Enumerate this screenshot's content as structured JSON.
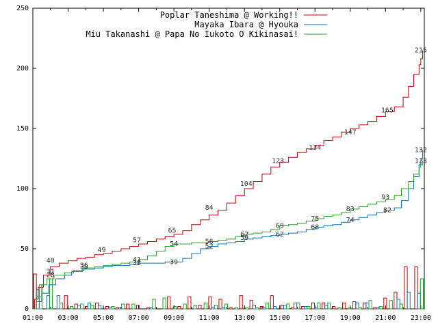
{
  "chart_data": {
    "type": "line",
    "title": "",
    "xlabel": "",
    "ylabel": "",
    "xlim": [
      1,
      23.2
    ],
    "ylim": [
      0,
      250
    ],
    "y_ticks": [
      "0",
      "50",
      "100",
      "150",
      "200",
      "250"
    ],
    "x_ticks": [
      "01:00",
      "03:00",
      "05:00",
      "07:00",
      "09:00",
      "11:00",
      "13:00",
      "15:00",
      "17:00",
      "19:00",
      "21:00",
      "23:00"
    ],
    "legend_position": "top-right",
    "series": [
      {
        "name": "Poplar Taneshima @ Working!!",
        "color": "#c00000",
        "points": [
          [
            1.0,
            0
          ],
          [
            1.1,
            8
          ],
          [
            1.3,
            18
          ],
          [
            1.6,
            28
          ],
          [
            2.0,
            35
          ],
          [
            2.5,
            38
          ],
          [
            3.0,
            40
          ],
          [
            3.5,
            42
          ],
          [
            4.0,
            43
          ],
          [
            4.5,
            45
          ],
          [
            5.0,
            46
          ],
          [
            5.5,
            48
          ],
          [
            6.0,
            50
          ],
          [
            6.5,
            52
          ],
          [
            7.0,
            54
          ],
          [
            7.5,
            56
          ],
          [
            8.0,
            58
          ],
          [
            8.5,
            60
          ],
          [
            9.0,
            62
          ],
          [
            9.5,
            65
          ],
          [
            10.0,
            70
          ],
          [
            10.5,
            74
          ],
          [
            11.0,
            78
          ],
          [
            11.5,
            82
          ],
          [
            12.0,
            88
          ],
          [
            12.5,
            94
          ],
          [
            13.0,
            100
          ],
          [
            13.5,
            106
          ],
          [
            14.0,
            112
          ],
          [
            14.5,
            118
          ],
          [
            15.0,
            122
          ],
          [
            15.5,
            126
          ],
          [
            16.0,
            130
          ],
          [
            16.5,
            133
          ],
          [
            17.0,
            136
          ],
          [
            17.5,
            140
          ],
          [
            18.0,
            143
          ],
          [
            18.5,
            147
          ],
          [
            19.0,
            150
          ],
          [
            19.5,
            153
          ],
          [
            20.0,
            156
          ],
          [
            20.5,
            160
          ],
          [
            21.0,
            164
          ],
          [
            21.5,
            168
          ],
          [
            22.0,
            176
          ],
          [
            22.3,
            185
          ],
          [
            22.6,
            195
          ],
          [
            22.9,
            203
          ],
          [
            23.0,
            208
          ],
          [
            23.1,
            215
          ]
        ],
        "data_labels": [
          {
            "x": 2.0,
            "y": 40,
            "text": "40"
          },
          {
            "x": 4.9,
            "y": 49,
            "text": "49"
          },
          {
            "x": 6.9,
            "y": 57,
            "text": "57"
          },
          {
            "x": 8.9,
            "y": 65,
            "text": "65"
          },
          {
            "x": 11.0,
            "y": 84,
            "text": "84"
          },
          {
            "x": 13.1,
            "y": 104,
            "text": "104"
          },
          {
            "x": 14.9,
            "y": 123,
            "text": "123"
          },
          {
            "x": 17.0,
            "y": 134,
            "text": "134"
          },
          {
            "x": 19.0,
            "y": 147,
            "text": "147"
          },
          {
            "x": 21.1,
            "y": 165,
            "text": "165"
          },
          {
            "x": 23.0,
            "y": 215,
            "text": "215"
          }
        ],
        "hist": [
          29,
          0,
          0,
          11,
          4,
          2,
          5,
          2,
          1,
          4,
          3,
          1,
          0,
          10,
          2,
          10,
          3,
          10,
          8,
          1,
          11,
          7,
          2,
          11,
          3,
          1,
          2,
          5,
          5,
          2,
          5,
          6,
          5,
          1,
          9,
          14,
          35,
          35
        ]
      },
      {
        "name": "Mayaka Ibara @ Hyouka",
        "color": "#0070c0",
        "points": [
          [
            1.0,
            0
          ],
          [
            1.2,
            6
          ],
          [
            1.5,
            13
          ],
          [
            1.9,
            20
          ],
          [
            2.3,
            25
          ],
          [
            2.8,
            28
          ],
          [
            3.2,
            31
          ],
          [
            3.8,
            33
          ],
          [
            4.5,
            34
          ],
          [
            5.0,
            35
          ],
          [
            5.5,
            36
          ],
          [
            6.0,
            36
          ],
          [
            6.5,
            37
          ],
          [
            7.0,
            38
          ],
          [
            7.5,
            38
          ],
          [
            8.0,
            38
          ],
          [
            8.5,
            39
          ],
          [
            9.0,
            39
          ],
          [
            9.5,
            42
          ],
          [
            10.0,
            46
          ],
          [
            10.5,
            50
          ],
          [
            11.0,
            52
          ],
          [
            11.5,
            54
          ],
          [
            12.0,
            55
          ],
          [
            12.5,
            56
          ],
          [
            13.0,
            58
          ],
          [
            13.5,
            59
          ],
          [
            14.0,
            60
          ],
          [
            14.5,
            61
          ],
          [
            15.0,
            62
          ],
          [
            15.5,
            63
          ],
          [
            16.0,
            64
          ],
          [
            16.5,
            66
          ],
          [
            17.0,
            68
          ],
          [
            17.5,
            69
          ],
          [
            18.0,
            70
          ],
          [
            18.5,
            72
          ],
          [
            19.0,
            74
          ],
          [
            19.5,
            76
          ],
          [
            20.0,
            78
          ],
          [
            20.5,
            80
          ],
          [
            21.0,
            82
          ],
          [
            21.5,
            84
          ],
          [
            21.9,
            90
          ],
          [
            22.3,
            100
          ],
          [
            22.6,
            110
          ],
          [
            22.9,
            120
          ],
          [
            23.0,
            125
          ],
          [
            23.1,
            132
          ]
        ],
        "data_labels": [
          {
            "x": 2.0,
            "y": 28,
            "text": "28"
          },
          {
            "x": 3.9,
            "y": 35,
            "text": "35"
          },
          {
            "x": 6.9,
            "y": 38,
            "text": "38"
          },
          {
            "x": 9.0,
            "y": 39,
            "text": "39"
          },
          {
            "x": 11.0,
            "y": 52,
            "text": "52"
          },
          {
            "x": 13.0,
            "y": 59,
            "text": "59"
          },
          {
            "x": 15.0,
            "y": 62,
            "text": "62"
          },
          {
            "x": 17.0,
            "y": 68,
            "text": "68"
          },
          {
            "x": 19.0,
            "y": 74,
            "text": "74"
          },
          {
            "x": 21.1,
            "y": 82,
            "text": "82"
          },
          {
            "x": 23.0,
            "y": 132,
            "text": "132"
          }
        ],
        "hist": [
          16,
          11,
          11,
          0,
          3,
          5,
          3,
          1,
          1,
          0,
          0,
          1,
          0,
          0,
          0,
          0,
          0,
          1,
          1,
          0,
          0,
          3,
          1,
          2,
          3,
          5,
          2,
          1,
          3,
          0,
          0,
          5,
          5,
          1,
          0,
          8,
          14,
          13
        ]
      },
      {
        "name": "Miu Takanashi @ Papa No Iukoto O Kikinasai!",
        "color": "#20a020",
        "points": [
          [
            1.0,
            0
          ],
          [
            1.2,
            10
          ],
          [
            1.5,
            20
          ],
          [
            1.8,
            25
          ],
          [
            2.2,
            28
          ],
          [
            2.8,
            30
          ],
          [
            3.3,
            32
          ],
          [
            3.9,
            34
          ],
          [
            4.5,
            35
          ],
          [
            5.0,
            36
          ],
          [
            5.5,
            37
          ],
          [
            6.0,
            38
          ],
          [
            6.5,
            39
          ],
          [
            7.0,
            41
          ],
          [
            7.5,
            44
          ],
          [
            8.0,
            48
          ],
          [
            8.5,
            52
          ],
          [
            9.0,
            54
          ],
          [
            9.5,
            54
          ],
          [
            10.0,
            55
          ],
          [
            10.5,
            55
          ],
          [
            11.0,
            56
          ],
          [
            11.5,
            57
          ],
          [
            12.0,
            58
          ],
          [
            12.5,
            60
          ],
          [
            13.0,
            62
          ],
          [
            13.5,
            63
          ],
          [
            14.0,
            64
          ],
          [
            14.5,
            66
          ],
          [
            15.0,
            69
          ],
          [
            15.5,
            70
          ],
          [
            16.0,
            71
          ],
          [
            16.5,
            73
          ],
          [
            17.0,
            75
          ],
          [
            17.5,
            77
          ],
          [
            18.0,
            78
          ],
          [
            18.5,
            80
          ],
          [
            19.0,
            83
          ],
          [
            19.5,
            85
          ],
          [
            20.0,
            87
          ],
          [
            20.5,
            89
          ],
          [
            21.0,
            91
          ],
          [
            21.5,
            94
          ],
          [
            21.9,
            100
          ],
          [
            22.3,
            106
          ],
          [
            22.6,
            112
          ],
          [
            22.9,
            118
          ],
          [
            23.0,
            120
          ],
          [
            23.1,
            123
          ]
        ],
        "data_labels": [
          {
            "x": 2.0,
            "y": 31,
            "text": "31"
          },
          {
            "x": 3.9,
            "y": 36,
            "text": "36"
          },
          {
            "x": 6.9,
            "y": 41,
            "text": "41"
          },
          {
            "x": 9.0,
            "y": 54,
            "text": "54"
          },
          {
            "x": 11.0,
            "y": 56,
            "text": "56"
          },
          {
            "x": 13.0,
            "y": 62,
            "text": "62"
          },
          {
            "x": 15.0,
            "y": 69,
            "text": "69"
          },
          {
            "x": 17.0,
            "y": 75,
            "text": "75"
          },
          {
            "x": 19.0,
            "y": 83,
            "text": "83"
          },
          {
            "x": 21.0,
            "y": 93,
            "text": "93"
          },
          {
            "x": 23.0,
            "y": 123,
            "text": "123"
          }
        ],
        "hist": [
          20,
          25,
          5,
          2,
          4,
          3,
          0,
          2,
          4,
          4,
          0,
          8,
          9,
          2,
          4,
          3,
          5,
          3,
          4,
          1,
          1,
          1,
          5,
          0,
          4,
          5,
          2,
          5,
          5,
          1,
          1,
          1,
          7,
          2,
          7,
          4,
          0,
          25
        ]
      }
    ]
  }
}
